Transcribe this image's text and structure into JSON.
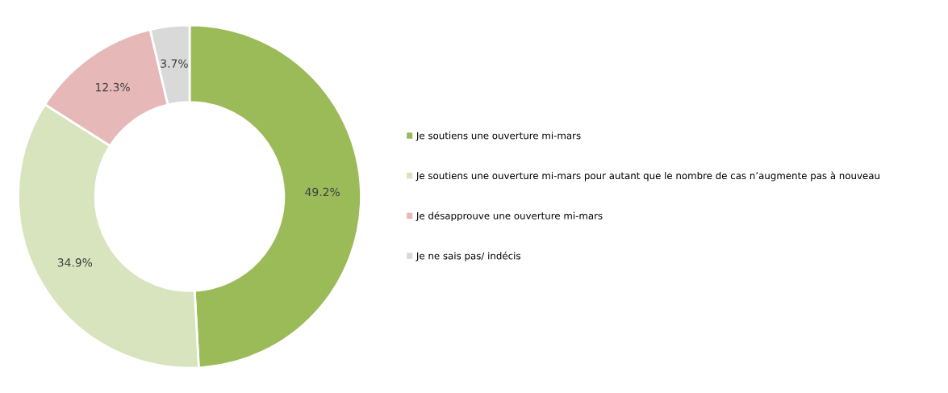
{
  "chart_data": {
    "type": "donut",
    "categories": [
      "Je soutiens une ouverture mi-mars",
      "Je soutiens une ouverture mi-mars pour autant que le nombre de cas n’augmente pas à nouveau",
      "Je désapprouve une ouverture mi-mars",
      "Je ne sais pas/ indécis"
    ],
    "values": [
      49.2,
      34.9,
      12.3,
      3.7
    ],
    "value_labels": [
      "49.2%",
      "34.9%",
      "12.3%",
      "3.7%"
    ],
    "colors": [
      "#9bbb59",
      "#d7e4bd",
      "#e6b9b8",
      "#d9d9d9"
    ],
    "legend": "right"
  }
}
